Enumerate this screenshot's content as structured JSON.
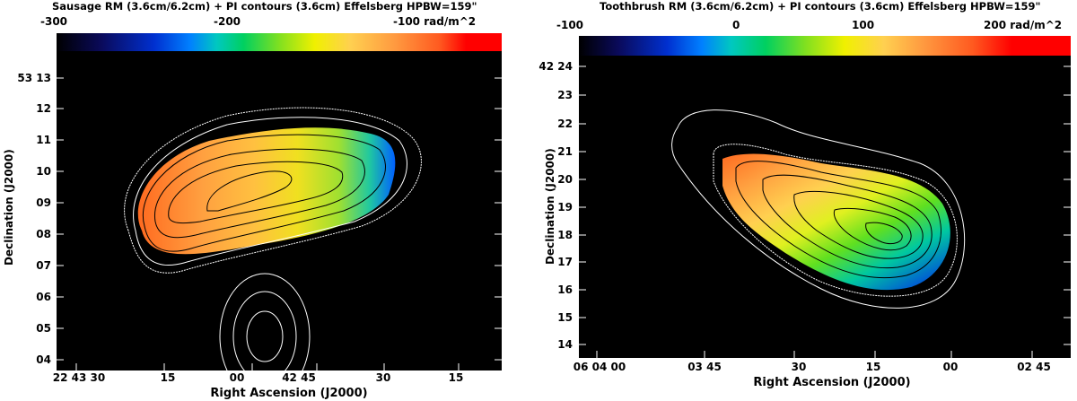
{
  "left": {
    "title": "Sausage  RM (3.6cm/6.2cm) + PI contours (3.6cm)   Effelsberg  HPBW=159\"",
    "colorbar_ticks": [
      "-300",
      "-200",
      "-100 rad/m^2"
    ],
    "y_ticks": [
      "53 13",
      "12",
      "11",
      "10",
      "09",
      "08",
      "07",
      "06",
      "05",
      "04"
    ],
    "x_ticks": [
      "22 43 30",
      "15",
      "00",
      "42 45",
      "30",
      "15"
    ],
    "xlabel": "Right Ascension (J2000)",
    "ylabel": "Declination (J2000)"
  },
  "right": {
    "title": "Toothbrush RM (3.6cm/6.2cm) + PI contours (3.6cm) Effelsberg HPBW=159\"",
    "colorbar_ticks": [
      "-100",
      "0",
      "100",
      "200 rad/m^2"
    ],
    "y_ticks": [
      "42 24",
      "23",
      "22",
      "21",
      "20",
      "19",
      "18",
      "17",
      "16",
      "15",
      "14"
    ],
    "x_ticks": [
      "06 04 00",
      "03 45",
      "30",
      "15",
      "00",
      "02 45"
    ],
    "xlabel": "Right Ascension (J2000)",
    "ylabel": "Declination (J2000)"
  },
  "colormap": [
    "#000000",
    "#0a0a5a",
    "#0020c8",
    "#0078ff",
    "#00c8c8",
    "#00d060",
    "#60e020",
    "#e8f000",
    "#ffd040",
    "#ff9a40",
    "#ff5a20",
    "#ff0000"
  ]
}
